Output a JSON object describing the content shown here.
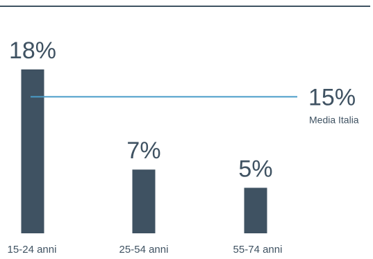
{
  "chart_data": {
    "type": "bar",
    "categories": [
      "15-24 anni",
      "25-54 anni",
      "55-74 anni"
    ],
    "values": [
      18,
      7,
      5
    ],
    "value_labels": [
      "18%",
      "7%",
      "5%"
    ],
    "unit": "%",
    "ylim": [
      0,
      18
    ],
    "grid": false,
    "legend": "none",
    "reference_line": {
      "value": 15,
      "value_label": "15%",
      "label": "Media Italia"
    },
    "colors": {
      "bar": "#3f5262",
      "reference_line": "#4a9cc9",
      "top_rule": "#3f5262",
      "text": "#3f5262"
    }
  }
}
